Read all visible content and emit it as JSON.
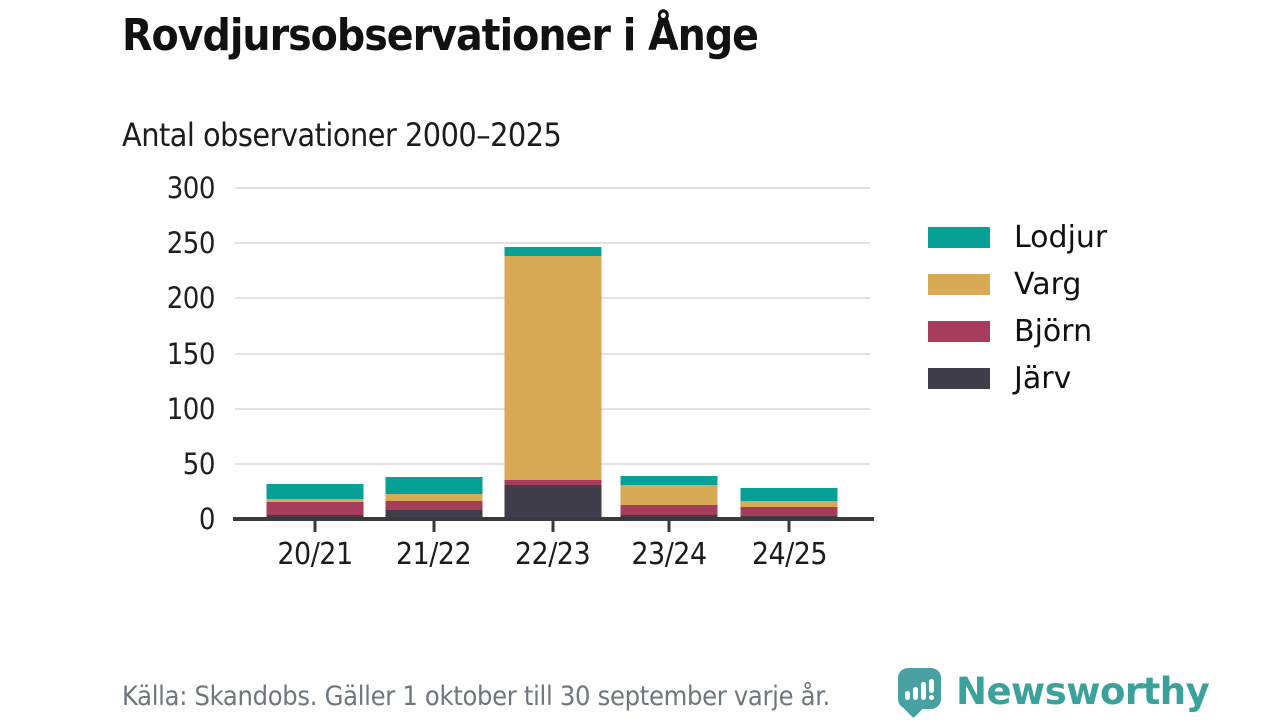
{
  "title": "Rovdjursobservationer i Ånge",
  "subtitle": "Antal observationer 2000–2025",
  "footer": {
    "source": "Källa: Skandobs. Gäller 1 oktober till 30 september varje år."
  },
  "branding": {
    "name": "Newsworthy",
    "text_color": "#3aa29b",
    "icon_color": "#48a1a0"
  },
  "chart_data": {
    "type": "bar",
    "stacked": true,
    "title": "Rovdjursobservationer i Ånge",
    "subtitle": "Antal observationer 2000–2025",
    "categories": [
      "20/21",
      "21/22",
      "22/23",
      "23/24",
      "24/25"
    ],
    "series": [
      {
        "name": "Järv",
        "color": "#413e4b",
        "values": [
          4,
          8,
          31,
          4,
          3
        ]
      },
      {
        "name": "Björn",
        "color": "#a63d5c",
        "values": [
          11,
          8,
          4,
          9,
          8
        ]
      },
      {
        "name": "Varg",
        "color": "#d9aa55",
        "values": [
          3,
          7,
          203,
          18,
          5
        ]
      },
      {
        "name": "Lodjur",
        "color": "#07a096",
        "values": [
          14,
          15,
          9,
          8,
          12
        ]
      }
    ],
    "totals": [
      32,
      38,
      247,
      39,
      28
    ],
    "legend_order": [
      "Lodjur",
      "Varg",
      "Björn",
      "Järv"
    ],
    "legend_position": "right",
    "xlabel": "",
    "ylabel": "",
    "ylim": [
      0,
      300
    ],
    "y_ticks": [
      0,
      50,
      100,
      150,
      200,
      250,
      300
    ],
    "grid": "horizontal",
    "gridline_color": "#e2e2e2",
    "axis_color": "#3a3a3c"
  }
}
